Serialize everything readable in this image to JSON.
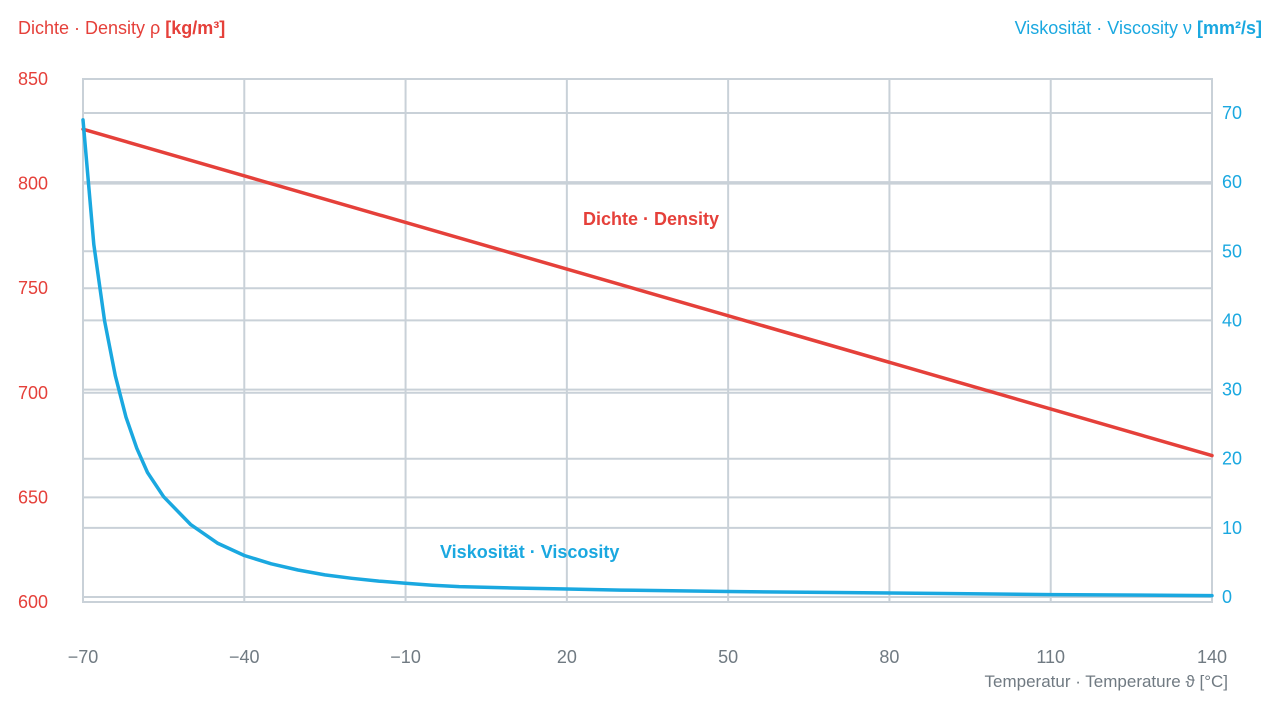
{
  "chart_data": {
    "type": "line",
    "title": "",
    "y_left_label": {
      "prefix": "Dichte · Density ρ ",
      "unit": "[kg/m³]"
    },
    "y_right_label": {
      "prefix": "Viskosität · Viscosity ν ",
      "unit": "[mm²/s]"
    },
    "xlabel": "Temperatur · Temperature ϑ [°C]",
    "x_ticks": [
      "−70",
      "−40",
      "−10",
      "20",
      "50",
      "80",
      "110",
      "140"
    ],
    "x_tick_values": [
      -70,
      -40,
      -10,
      20,
      50,
      80,
      110,
      140
    ],
    "x_range": [
      -70,
      140
    ],
    "y_left_ticks": [
      "850",
      "800",
      "750",
      "700",
      "650",
      "600"
    ],
    "y_left_tick_values": [
      850,
      800,
      750,
      700,
      650,
      600
    ],
    "y_left_range": [
      600,
      850
    ],
    "y_right_ticks": [
      "70",
      "60",
      "50",
      "40",
      "30",
      "20",
      "10",
      "0"
    ],
    "y_right_tick_values": [
      70,
      60,
      50,
      40,
      30,
      20,
      10,
      0
    ],
    "y_right_range": [
      0,
      76
    ],
    "grid": true,
    "colors": {
      "density": "#e5403a",
      "viscosity": "#1aa8e0",
      "grid": "#c9d1d8",
      "x_text": "#707a82"
    },
    "series": [
      {
        "name": "Dichte · Density",
        "axis": "left",
        "x": [
          -70,
          140
        ],
        "y": [
          826,
          670
        ]
      },
      {
        "name": "Viskosität · Viscosity",
        "axis": "right",
        "x": [
          -70,
          -68,
          -66,
          -64,
          -62,
          -60,
          -58,
          -55,
          -50,
          -45,
          -40,
          -35,
          -30,
          -25,
          -20,
          -15,
          -10,
          -5,
          0,
          10,
          20,
          30,
          50,
          70,
          90,
          110,
          140
        ],
        "y": [
          69,
          51,
          40,
          32,
          26,
          21.5,
          18,
          14.5,
          10.5,
          7.8,
          6.0,
          4.8,
          3.9,
          3.2,
          2.7,
          2.3,
          2.0,
          1.7,
          1.5,
          1.3,
          1.15,
          1.0,
          0.8,
          0.65,
          0.5,
          0.35,
          0.2
        ]
      }
    ],
    "annotations": [
      {
        "text": "Dichte · Density",
        "series": "density"
      },
      {
        "text": "Viskosität · Viscosity",
        "series": "viscosity"
      }
    ]
  }
}
